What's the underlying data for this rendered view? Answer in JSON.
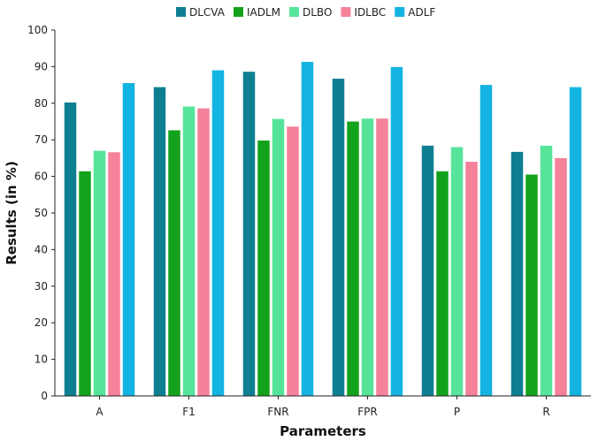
{
  "chart_data": {
    "type": "bar",
    "title": "",
    "xlabel": "Parameters",
    "ylabel": "Results (in %)",
    "ylim": [
      0,
      100
    ],
    "yticks": [
      0,
      10,
      20,
      30,
      40,
      50,
      60,
      70,
      80,
      90,
      100
    ],
    "grid": false,
    "legend_position": "top",
    "categories": [
      "A",
      "F1",
      "FNR",
      "FPR",
      "P",
      "R"
    ],
    "series": [
      {
        "name": "DLCVA",
        "color": "#0e7f93",
        "values": [
          80.2,
          84.4,
          88.6,
          86.7,
          68.4,
          66.7
        ]
      },
      {
        "name": "IADLM",
        "color": "#13a21c",
        "values": [
          61.4,
          72.6,
          69.8,
          75.0,
          61.4,
          60.5
        ]
      },
      {
        "name": "DLBO",
        "color": "#56e49a",
        "values": [
          67.0,
          79.1,
          75.7,
          75.8,
          68.0,
          68.4
        ]
      },
      {
        "name": "IDLBC",
        "color": "#f5819a",
        "values": [
          66.6,
          78.6,
          73.6,
          75.8,
          64.0,
          65.0
        ]
      },
      {
        "name": "ADLF",
        "color": "#13b4e2",
        "values": [
          85.5,
          89.0,
          91.3,
          89.9,
          85.0,
          84.4
        ]
      }
    ]
  }
}
